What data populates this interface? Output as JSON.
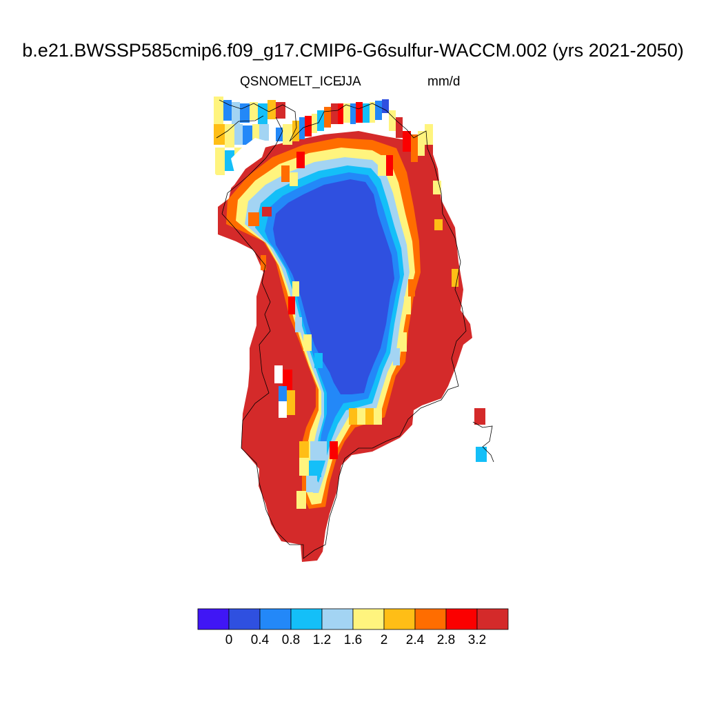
{
  "title": "b.e21.BWSSP585cmip6.f09_g17.CMIP6-G6sulfur-WACCM.002 (yrs 2021-2050)",
  "variable": "QSNOMELT_ICE",
  "season": "JJA",
  "units": "mm/d",
  "colorbar": {
    "colors": [
      "#4016f5",
      "#2f50e0",
      "#2388f8",
      "#14bff8",
      "#a3d4f3",
      "#fff47e",
      "#ffbe16",
      "#ff6d00",
      "#fb0000",
      "#d42a2a"
    ],
    "tick_labels": [
      "0",
      "0.4",
      "0.8",
      "1.2",
      "1.6",
      "2",
      "2.4",
      "2.8",
      "3.2"
    ]
  },
  "map_colors": {
    "land": "#d42a2a",
    "interior": "#2f50e0",
    "ring_outer": "#fb0000",
    "ring_mid": "#ffbe16",
    "ring_yellow": "#fff47e",
    "ring_light": "#a3d4f3",
    "ring_cyan": "#14bff8",
    "ring_blue": "#2388f8",
    "orange": "#ff6d00"
  }
}
